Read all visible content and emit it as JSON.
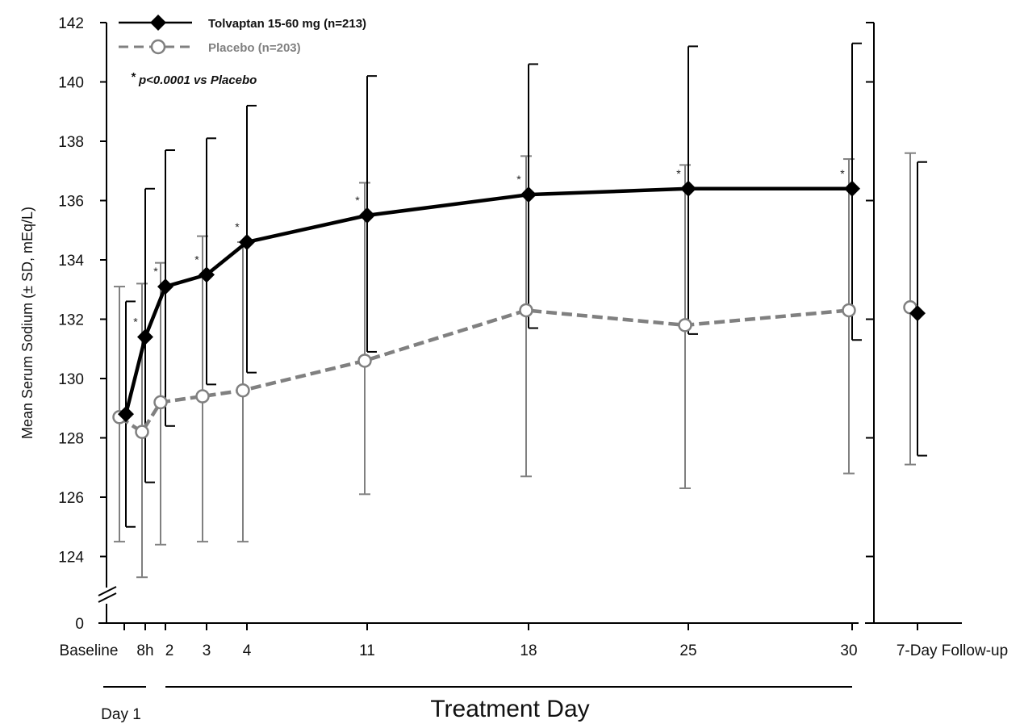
{
  "chart_data": {
    "type": "line",
    "title": "",
    "ylabel": "Mean Serum Sodium (± SD, mEq/L)",
    "xlabel": "Treatment Day",
    "day1_label": "Day 1",
    "ylim": [
      124,
      142
    ],
    "y_ticks": [
      142,
      140,
      138,
      136,
      134,
      132,
      130,
      128,
      126,
      124
    ],
    "y_zero_label": "0",
    "y_axis_break": true,
    "grid": false,
    "legend_position": "top-left",
    "significance_note": "p<0.0001 vs Placebo",
    "significance_marker": "*",
    "categories": [
      "Baseline",
      "8h",
      "2",
      "3",
      "4",
      "11",
      "18",
      "25",
      "30",
      "7-Day Follow-up"
    ],
    "series": [
      {
        "name": "Tolvaptan 15-60 mg (n=213)",
        "color": "#000000",
        "marker": "filled-diamond",
        "line": "solid",
        "values": [
          128.8,
          131.4,
          133.1,
          133.5,
          134.6,
          135.5,
          136.2,
          136.4,
          136.4,
          132.2
        ],
        "sd_upper": [
          132.6,
          136.4,
          137.7,
          138.1,
          139.2,
          140.2,
          140.6,
          141.2,
          141.3,
          137.3
        ],
        "sd_lower": [
          125.0,
          126.5,
          128.4,
          129.8,
          130.2,
          130.9,
          131.7,
          131.5,
          131.3,
          127.4
        ],
        "significant": [
          false,
          true,
          true,
          true,
          true,
          true,
          true,
          true,
          true,
          false
        ]
      },
      {
        "name": "Placebo (n=203)",
        "color": "#808080",
        "marker": "open-circle",
        "line": "dashed",
        "values": [
          128.7,
          128.2,
          129.2,
          129.4,
          129.6,
          130.6,
          132.3,
          131.8,
          132.3,
          132.4
        ],
        "sd_upper": [
          133.1,
          133.2,
          133.9,
          134.8,
          134.6,
          136.6,
          137.5,
          137.2,
          137.4,
          137.6
        ],
        "sd_lower": [
          124.5,
          123.3,
          124.4,
          124.5,
          124.5,
          126.1,
          126.7,
          126.3,
          126.8,
          127.1
        ]
      }
    ]
  }
}
